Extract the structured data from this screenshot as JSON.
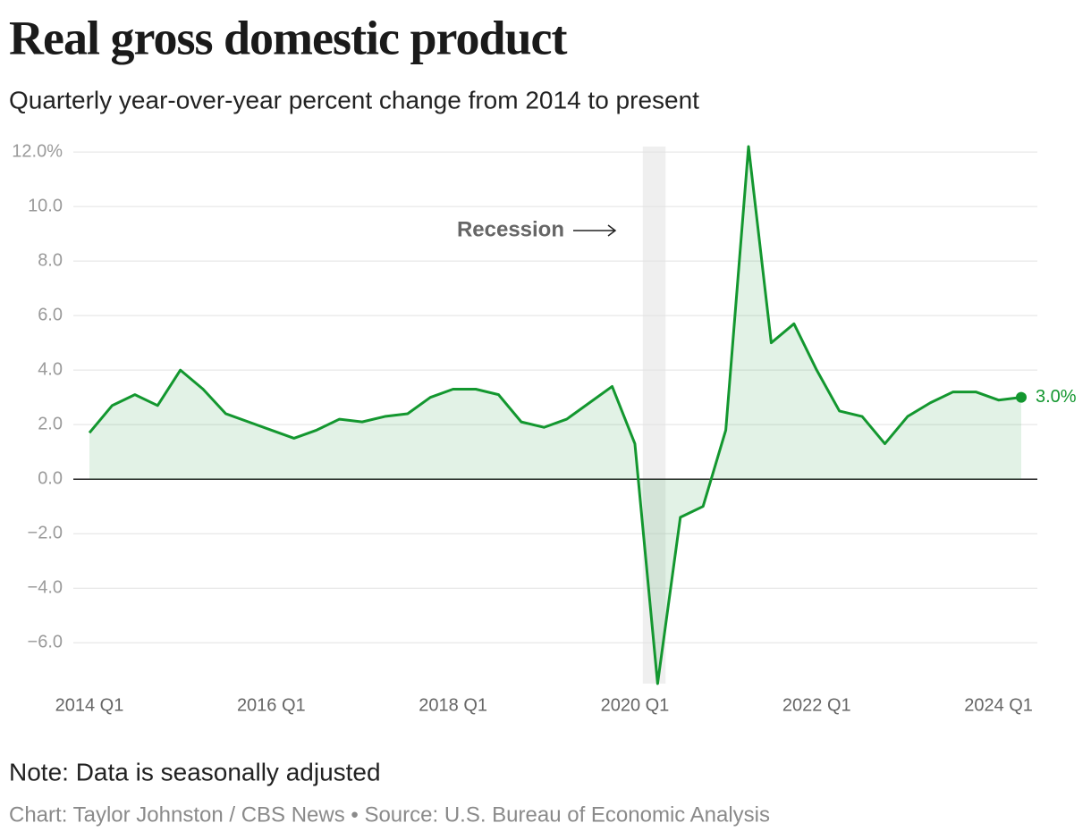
{
  "chart_data": {
    "type": "line",
    "title": "Real gross domestic product",
    "subtitle": "Quarterly year-over-year percent change from 2014 to present",
    "note": "Note: Data is seasonally adjusted",
    "source": "Chart: Taylor Johnston / CBS News • Source: U.S. Bureau of Economic Analysis",
    "annotation": "Recession",
    "categories": [
      "2014 Q1",
      null,
      null,
      null,
      null,
      null,
      null,
      null,
      "2016 Q1",
      null,
      null,
      null,
      null,
      null,
      null,
      null,
      "2018 Q1",
      null,
      null,
      null,
      null,
      null,
      null,
      null,
      "2020 Q1",
      null,
      null,
      null,
      null,
      null,
      null,
      null,
      "2022 Q1",
      null,
      null,
      null,
      null,
      null,
      null,
      null,
      "2024 Q1",
      null
    ],
    "series": [
      {
        "name": "Real GDP",
        "color": "#13972f",
        "values": [
          1.7,
          2.7,
          3.1,
          2.7,
          4.0,
          3.3,
          2.4,
          2.1,
          1.8,
          1.5,
          1.8,
          2.2,
          2.1,
          2.3,
          2.4,
          3.0,
          3.3,
          3.3,
          3.1,
          2.1,
          1.9,
          2.2,
          2.8,
          3.4,
          1.3,
          -7.5,
          -1.4,
          -1.0,
          1.8,
          12.2,
          5.0,
          5.7,
          4.0,
          2.5,
          2.3,
          1.3,
          2.3,
          2.8,
          3.2,
          3.2,
          2.9,
          3.0
        ],
        "value_labels": [
          null,
          null,
          null,
          null,
          null,
          null,
          null,
          null,
          null,
          null,
          null,
          null,
          null,
          null,
          null,
          null,
          null,
          null,
          null,
          null,
          null,
          null,
          null,
          null,
          null,
          null,
          null,
          null,
          null,
          null,
          null,
          null,
          null,
          null,
          null,
          null,
          null,
          null,
          null,
          null,
          null,
          "3.0%"
        ]
      }
    ],
    "ylim": [
      -7.5,
      12.2
    ],
    "yticks": [
      {
        "value": -6,
        "label": "−6.0"
      },
      {
        "value": -4,
        "label": "−4.0"
      },
      {
        "value": -2,
        "label": "−2.0"
      },
      {
        "value": 0,
        "label": "0.0"
      },
      {
        "value": 2,
        "label": "2.0"
      },
      {
        "value": 4,
        "label": "4.0"
      },
      {
        "value": 6,
        "label": "6.0"
      },
      {
        "value": 8,
        "label": "8.0"
      },
      {
        "value": 10,
        "label": "10.0"
      },
      {
        "value": 12,
        "label": "12.0%"
      }
    ],
    "grid": true
  }
}
